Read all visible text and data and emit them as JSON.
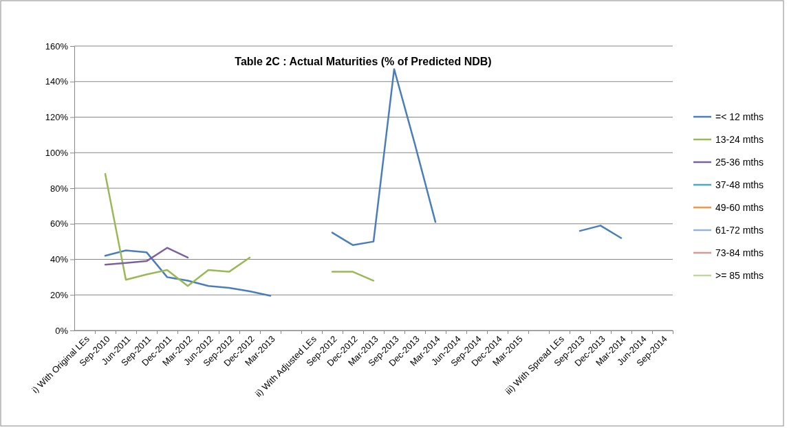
{
  "chart_data": {
    "type": "line",
    "title": "Table 2C : Actual Maturities (% of Predicted NDB)",
    "categories": [
      "i) With Original LEs",
      "Sep-2010",
      "Jun-2011",
      "Sep-2011",
      "Dec-2011",
      "Mar-2012",
      "Jun-2012",
      "Sep-2012",
      "Dec-2012",
      "Mar-2013",
      null,
      "ii) With Adjusted LEs",
      "Sep-2012",
      "Dec-2012",
      "Mar-2013",
      "Sep-2013",
      "Dec-2013",
      "Mar-2014",
      "Jun-2014",
      "Sep-2014",
      "Dec-2014",
      "Mar-2015",
      null,
      "iii) With Spread LEs",
      "Sep-2013",
      "Dec-2013",
      "Mar-2014",
      "Jun-2014",
      "Sep-2014"
    ],
    "series": [
      {
        "name": "=< 12 mths",
        "color": "#4a7ebb",
        "values": [
          null,
          42,
          45,
          44,
          30,
          28,
          25,
          24,
          22,
          19.5,
          null,
          null,
          55,
          48,
          50,
          147,
          105,
          61,
          null,
          null,
          null,
          null,
          null,
          null,
          56,
          59,
          52,
          null,
          null
        ]
      },
      {
        "name": "13-24 mths",
        "color": "#98b954",
        "values": [
          null,
          88,
          28.5,
          31.5,
          34,
          25,
          34,
          33,
          41,
          null,
          null,
          null,
          33,
          33,
          28,
          null,
          null,
          null,
          null,
          null,
          null,
          null,
          null,
          null,
          null,
          null,
          null,
          null,
          null
        ]
      },
      {
        "name": "25-36 mths",
        "color": "#7d60a0",
        "values": [
          null,
          37,
          38,
          39,
          46.5,
          41,
          null,
          null,
          null,
          null,
          null,
          null,
          null,
          null,
          null,
          null,
          null,
          null,
          null,
          null,
          null,
          null,
          null,
          null,
          null,
          null,
          null,
          null,
          null
        ]
      },
      {
        "name": "37-48 mths",
        "color": "#46aac5",
        "values": [
          null,
          null,
          null,
          null,
          null,
          null,
          null,
          null,
          null,
          null,
          null,
          null,
          null,
          null,
          null,
          null,
          null,
          null,
          null,
          null,
          null,
          null,
          null,
          null,
          null,
          null,
          null,
          null,
          null
        ]
      },
      {
        "name": "49-60 mths",
        "color": "#f79646",
        "values": [
          null,
          null,
          null,
          null,
          null,
          null,
          null,
          null,
          null,
          null,
          null,
          null,
          null,
          null,
          null,
          null,
          null,
          null,
          null,
          null,
          null,
          null,
          null,
          null,
          null,
          null,
          null,
          null,
          null
        ]
      },
      {
        "name": "61-72 mths",
        "color": "#95b3d7",
        "values": [
          null,
          null,
          null,
          null,
          null,
          null,
          null,
          null,
          null,
          null,
          null,
          null,
          null,
          null,
          null,
          null,
          null,
          null,
          null,
          null,
          null,
          null,
          null,
          null,
          null,
          null,
          null,
          null,
          null
        ]
      },
      {
        "name": "73-84 mths",
        "color": "#d99694",
        "values": [
          null,
          null,
          null,
          null,
          null,
          null,
          null,
          null,
          null,
          null,
          null,
          null,
          null,
          null,
          null,
          null,
          null,
          null,
          null,
          null,
          null,
          null,
          null,
          null,
          null,
          null,
          null,
          null,
          null
        ]
      },
      {
        "name": ">= 85 mths",
        "color": "#c3d69b",
        "values": [
          null,
          null,
          null,
          null,
          null,
          null,
          null,
          null,
          null,
          null,
          null,
          null,
          null,
          null,
          null,
          null,
          null,
          null,
          null,
          null,
          null,
          null,
          null,
          null,
          null,
          null,
          null,
          null,
          null
        ]
      }
    ],
    "ylim": [
      0,
      160
    ],
    "yticks": [
      {
        "value": 0,
        "label": "0%"
      },
      {
        "value": 20,
        "label": "20%"
      },
      {
        "value": 40,
        "label": "40%"
      },
      {
        "value": 60,
        "label": "60%"
      },
      {
        "value": 80,
        "label": "80%"
      },
      {
        "value": 100,
        "label": "100%"
      },
      {
        "value": 120,
        "label": "120%"
      },
      {
        "value": 140,
        "label": "140%"
      },
      {
        "value": 160,
        "label": "160%"
      }
    ],
    "grid": "y",
    "legend": "right",
    "marker": "none",
    "line_style": "solid"
  }
}
